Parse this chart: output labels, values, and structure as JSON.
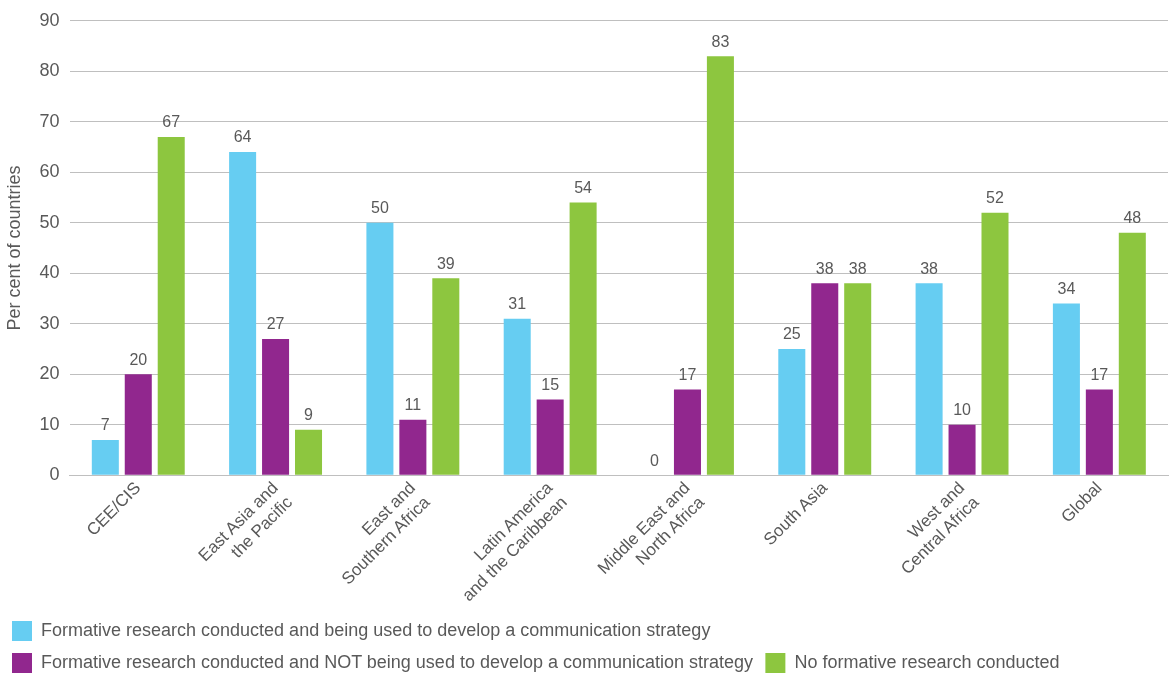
{
  "chart_data": {
    "type": "bar",
    "ylabel": "Per cent of countries",
    "categories": [
      "CEE/CIS",
      "East Asia and\nthe Pacific",
      "East and\nSouthern Africa",
      "Latin America\nand the Caribbean",
      "Middle East and\nNorth Africa",
      "South Asia",
      "West and\nCentral Africa",
      "Global"
    ],
    "series": [
      {
        "name": "Formative research conducted and being used to develop a communication strategy",
        "color": "#66cdf2",
        "values": [
          7,
          64,
          50,
          31,
          0,
          25,
          38,
          34
        ]
      },
      {
        "name": "Formative research conducted and NOT being used to develop a communication strategy",
        "color": "#91278e",
        "values": [
          20,
          27,
          11,
          15,
          17,
          38,
          10,
          17
        ]
      },
      {
        "name": "No formative research conducted",
        "color": "#8dc63f",
        "values": [
          67,
          9,
          39,
          54,
          83,
          38,
          52,
          48
        ]
      }
    ],
    "ylim": [
      0,
      90
    ],
    "yticks": [
      0,
      10,
      20,
      30,
      40,
      50,
      60,
      70,
      80,
      90
    ],
    "grid": "y",
    "legend": "bottom",
    "data_labels": true
  }
}
